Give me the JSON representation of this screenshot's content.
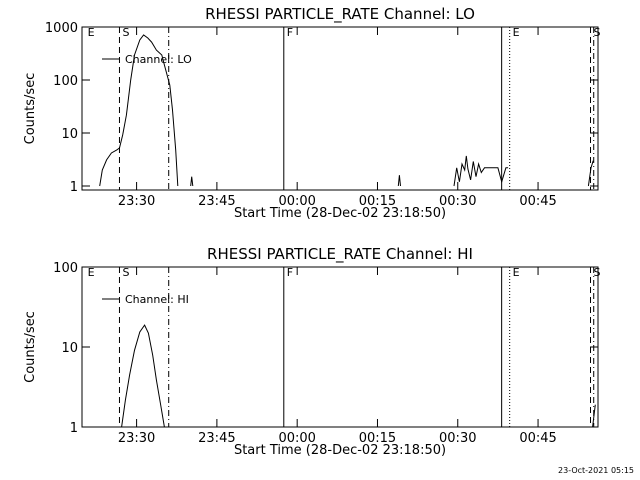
{
  "chart_data": [
    {
      "type": "line",
      "title": "RHESSI PARTICLE_RATE Channel: LO",
      "x_label": "Start Time (28-Dec-02 23:18:50)",
      "y_label": "Counts/sec",
      "log_y": true,
      "legend": "upper left",
      "xlim": [
        19.8,
        116.2
      ],
      "ylim": [
        0.84,
        1000
      ],
      "xticks": [
        {
          "value": 30,
          "label": "23:30"
        },
        {
          "value": 45,
          "label": "23:45"
        },
        {
          "value": 60,
          "label": "00:00"
        },
        {
          "value": 75,
          "label": "00:15"
        },
        {
          "value": 90,
          "label": "00:30"
        },
        {
          "value": 105,
          "label": "00:45"
        }
      ],
      "yticks": [
        1,
        10,
        100,
        1000
      ],
      "events": [
        {
          "x": 20.3,
          "label": "E"
        },
        {
          "x": 26.8,
          "style": "dashed",
          "label": "S"
        },
        {
          "x": 36.0,
          "style": "dashdot"
        },
        {
          "x": 57.5,
          "style": "solid",
          "label": "F"
        },
        {
          "x": 98.2,
          "style": "solid"
        },
        {
          "x": 99.7,
          "style": "dotted",
          "label": "E"
        },
        {
          "x": 114.8,
          "style": "dashed",
          "label": "S"
        },
        {
          "x": 115.4,
          "style": "dashdot"
        }
      ],
      "series": [
        {
          "name": "Channel: LO",
          "color": "#000000",
          "x": [
            23.1,
            23.6,
            24.4,
            25.3,
            26.3,
            26.8,
            27.4,
            28.1,
            28.9,
            29.6,
            30.6,
            31.3,
            32.1,
            32.8,
            33.7,
            34.7,
            35.2,
            36.2,
            36.7,
            37.3,
            37.7,
            38.0,
            40.1,
            40.3,
            40.5,
            41.0,
            78.9,
            79.1,
            79.3,
            80.0,
            89.3,
            89.8,
            90.3,
            90.8,
            91.3,
            91.6,
            91.9,
            92.4,
            92.9,
            93.4,
            93.9,
            94.4,
            95.0,
            95.6,
            96.2,
            97.5,
            98.2,
            99.0,
            99.4,
            100.0,
            114.4,
            114.9,
            115.3
          ],
          "values": [
            1,
            2.0,
            3.1,
            4.2,
            4.8,
            5.2,
            9.2,
            21.8,
            100,
            296,
            568,
            707,
            620,
            520,
            367,
            296,
            192,
            80,
            27,
            4.8,
            1,
            null,
            1,
            1.5,
            1,
            null,
            1,
            1.6,
            1,
            null,
            1,
            2.2,
            1.2,
            2.6,
            2.0,
            3.7,
            2.1,
            1.3,
            2.9,
            1.5,
            2.6,
            1.8,
            2.2,
            2.2,
            2.2,
            2.2,
            1.2,
            2.2,
            2.2,
            null,
            1,
            2.2,
            3.0
          ]
        }
      ]
    },
    {
      "type": "line",
      "title": "RHESSI PARTICLE_RATE Channel: HI",
      "x_label": "Start Time (28-Dec-02 23:18:50)",
      "y_label": "Counts/sec",
      "log_y": true,
      "legend": "upper left",
      "xlim": [
        19.8,
        116.2
      ],
      "ylim": [
        1,
        100
      ],
      "xticks": [
        {
          "value": 30,
          "label": "23:30"
        },
        {
          "value": 45,
          "label": "23:45"
        },
        {
          "value": 60,
          "label": "00:00"
        },
        {
          "value": 75,
          "label": "00:15"
        },
        {
          "value": 90,
          "label": "00:30"
        },
        {
          "value": 105,
          "label": "00:45"
        }
      ],
      "yticks": [
        1,
        10,
        100
      ],
      "events": [
        {
          "x": 20.3,
          "label": "E"
        },
        {
          "x": 26.8,
          "style": "dashed",
          "label": "S"
        },
        {
          "x": 36.0,
          "style": "dashdot"
        },
        {
          "x": 57.5,
          "style": "solid",
          "label": "F"
        },
        {
          "x": 98.2,
          "style": "solid"
        },
        {
          "x": 99.7,
          "style": "dotted",
          "label": "E"
        },
        {
          "x": 114.8,
          "style": "dashed",
          "label": "S"
        },
        {
          "x": 115.4,
          "style": "dashdot"
        }
      ],
      "series": [
        {
          "name": "Channel: HI",
          "color": "#000000",
          "x": [
            27.2,
            27.9,
            28.7,
            29.6,
            30.6,
            31.5,
            32.2,
            33.0,
            33.7,
            34.5,
            35.2,
            35.5,
            115.2,
            115.7
          ],
          "values": [
            1,
            2.17,
            4.47,
            9.1,
            15.4,
            18.8,
            14.9,
            7.9,
            3.87,
            1.88,
            1,
            null,
            1,
            1.9
          ]
        }
      ]
    }
  ],
  "footer": "23-Oct-2021 05:15"
}
